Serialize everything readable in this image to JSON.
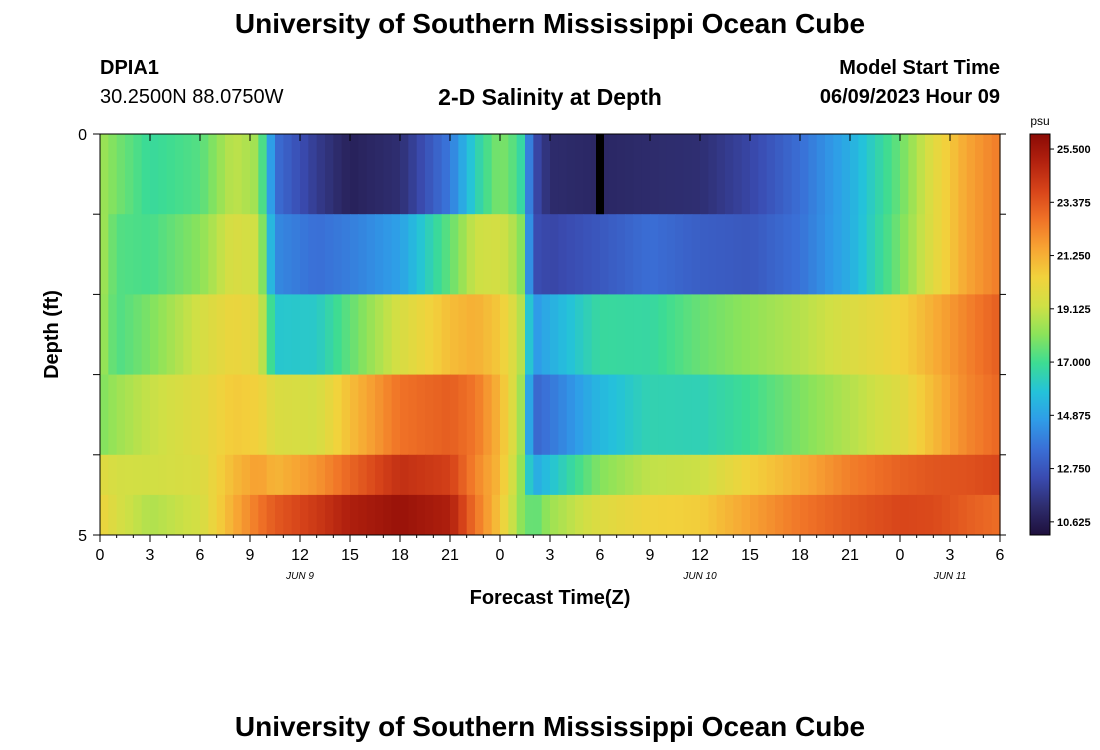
{
  "header": {
    "title": "University of Southern Mississippi Ocean Cube",
    "station": "DPIA1",
    "coordinates": "30.2500N  88.0750W",
    "subtitle": "2-D Salinity at Depth",
    "model_start_label": "Model Start Time",
    "model_start_value": "06/09/2023 Hour 09"
  },
  "footer": {
    "title": "University of Southern Mississippi Ocean Cube"
  },
  "chart_data": {
    "type": "heatmap",
    "title": "2-D Salinity at Depth",
    "xlabel": "Forecast Time(Z)",
    "ylabel": "Depth (ft)",
    "x_tick_labels": [
      "0",
      "3",
      "6",
      "9",
      "12",
      "15",
      "18",
      "21",
      "0",
      "3",
      "6",
      "9",
      "12",
      "15",
      "18",
      "21",
      "0",
      "3",
      "6"
    ],
    "x_range_hours": [
      0,
      54
    ],
    "date_labels": [
      {
        "text": "JUN 9",
        "hour": 12
      },
      {
        "text": "JUN 10",
        "hour": 36
      },
      {
        "text": "JUN 11",
        "hour": 51
      }
    ],
    "y_tick_labels": [
      "0",
      "5"
    ],
    "ylim": [
      0,
      5
    ],
    "depth_levels_ft": [
      0,
      1,
      2,
      3,
      4,
      5
    ],
    "colorbar": {
      "unit": "psu",
      "min": 10.1,
      "max": 26.1,
      "tick_labels": [
        "25.500",
        "23.375",
        "21.250",
        "19.125",
        "17.000",
        "14.875",
        "12.750",
        "10.625"
      ],
      "tick_values": [
        25.5,
        23.375,
        21.25,
        19.125,
        17.0,
        14.875,
        12.75,
        10.625
      ],
      "colormap": [
        "#1e0f3c",
        "#2e2d6e",
        "#3a4bb0",
        "#3a6fd6",
        "#2f9ce8",
        "#24c2da",
        "#3ddc93",
        "#8be35a",
        "#cfe045",
        "#f2d23c",
        "#f7a533",
        "#f07327",
        "#d8451a",
        "#b3220f",
        "#8b0a05"
      ]
    },
    "time_keyframes_hours": [
      0,
      1,
      3,
      6,
      8,
      9.5,
      10.5,
      13,
      15,
      18,
      21,
      22.5,
      24,
      25.2,
      26,
      27,
      30,
      33,
      36,
      39,
      42,
      45,
      48,
      50,
      52,
      54
    ],
    "rows": [
      {
        "depth_ft": "0-1",
        "salinity_psu": [
          18.5,
          17.8,
          16.8,
          17.3,
          19.0,
          18.4,
          13.5,
          11.8,
          10.8,
          11.3,
          13.8,
          16.3,
          18.0,
          17.0,
          12.5,
          11.2,
          11.0,
          11.2,
          11.3,
          12.2,
          13.5,
          15.2,
          17.6,
          19.8,
          21.5,
          22.5
        ]
      },
      {
        "depth_ft": "1-2",
        "salinity_psu": [
          18.7,
          17.3,
          17.1,
          18.1,
          19.6,
          19.2,
          14.2,
          13.5,
          13.9,
          14.8,
          17.5,
          19.2,
          19.4,
          18.4,
          12.5,
          12.2,
          12.8,
          13.5,
          13.0,
          12.8,
          13.6,
          15.2,
          17.8,
          19.8,
          21.5,
          22.5
        ]
      },
      {
        "depth_ft": "2-3",
        "salinity_psu": [
          18.6,
          17.2,
          17.9,
          19.4,
          20.2,
          19.8,
          16.0,
          16.1,
          17.5,
          19.5,
          20.9,
          21.3,
          20.6,
          19.1,
          14.5,
          15.2,
          16.8,
          16.7,
          17.6,
          18.2,
          18.8,
          19.6,
          20.3,
          21.3,
          22.3,
          23.2
        ]
      },
      {
        "depth_ft": "3-4",
        "salinity_psu": [
          17.9,
          18.4,
          19.1,
          19.8,
          20.6,
          20.4,
          19.6,
          19.4,
          20.9,
          22.7,
          23.2,
          22.6,
          21.1,
          18.8,
          13.2,
          13.7,
          15.5,
          16.5,
          16.4,
          17.0,
          17.9,
          18.8,
          19.7,
          21.0,
          22.2,
          23.0
        ]
      },
      {
        "depth_ft": "4-5",
        "salinity_psu": [
          19.8,
          19.4,
          19.3,
          19.6,
          21.0,
          21.7,
          21.1,
          21.9,
          23.0,
          24.5,
          24.0,
          22.3,
          21.0,
          18.4,
          15.0,
          15.8,
          18.0,
          19.0,
          19.2,
          20.4,
          21.3,
          22.4,
          23.1,
          23.4,
          23.5,
          23.8
        ]
      },
      {
        "depth_ft": "5",
        "salinity_psu": [
          20.3,
          19.5,
          18.7,
          19.4,
          21.3,
          22.6,
          23.3,
          24.2,
          25.1,
          25.7,
          25.1,
          22.7,
          20.7,
          18.2,
          17.3,
          18.4,
          19.7,
          20.3,
          20.5,
          21.6,
          22.6,
          23.3,
          23.8,
          23.7,
          23.2,
          22.8
        ]
      }
    ]
  }
}
